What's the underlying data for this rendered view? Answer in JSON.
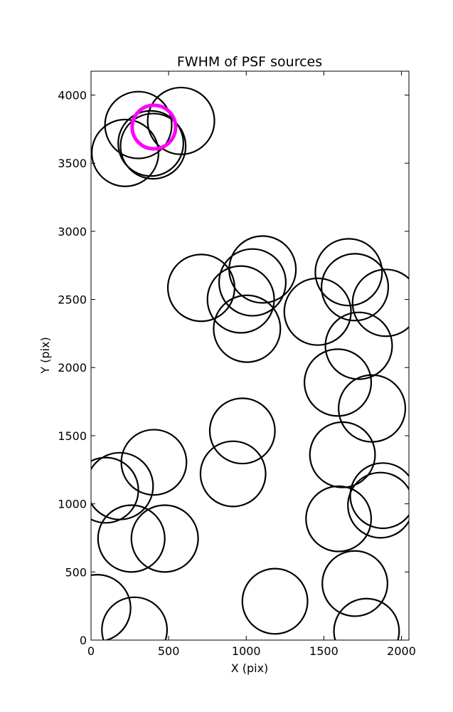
{
  "chart_data": {
    "type": "scatter",
    "title": "FWHM of PSF sources",
    "xlabel": "X (pix)",
    "ylabel": "Y (pix)",
    "xlim": [
      0,
      2048
    ],
    "ylim": [
      0,
      4175
    ],
    "xticks": [
      0,
      500,
      1000,
      1500,
      2000
    ],
    "yticks": [
      0,
      500,
      1000,
      1500,
      2000,
      2500,
      3000,
      3500,
      4000
    ],
    "grid": false,
    "legend": "none",
    "marker": "circle",
    "colors": {
      "normal": "#000000",
      "highlight": "#ff00ff"
    },
    "sources": [
      {
        "x": 305,
        "y": 3780,
        "r": 215
      },
      {
        "x": 580,
        "y": 3810,
        "r": 215
      },
      {
        "x": 220,
        "y": 3575,
        "r": 215
      },
      {
        "x": 385,
        "y": 3645,
        "r": 210
      },
      {
        "x": 400,
        "y": 3625,
        "r": 210
      },
      {
        "x": 710,
        "y": 2585,
        "r": 215
      },
      {
        "x": 1105,
        "y": 2720,
        "r": 215
      },
      {
        "x": 1040,
        "y": 2625,
        "r": 215
      },
      {
        "x": 965,
        "y": 2500,
        "r": 215
      },
      {
        "x": 1005,
        "y": 2285,
        "r": 215
      },
      {
        "x": 1660,
        "y": 2700,
        "r": 215
      },
      {
        "x": 1700,
        "y": 2590,
        "r": 215
      },
      {
        "x": 1900,
        "y": 2475,
        "r": 215
      },
      {
        "x": 1460,
        "y": 2410,
        "r": 215
      },
      {
        "x": 1725,
        "y": 2160,
        "r": 215
      },
      {
        "x": 1590,
        "y": 1890,
        "r": 215
      },
      {
        "x": 1810,
        "y": 1700,
        "r": 215
      },
      {
        "x": 975,
        "y": 1535,
        "r": 210
      },
      {
        "x": 915,
        "y": 1220,
        "r": 210
      },
      {
        "x": 405,
        "y": 1305,
        "r": 210
      },
      {
        "x": 185,
        "y": 1130,
        "r": 215
      },
      {
        "x": 95,
        "y": 1100,
        "r": 210
      },
      {
        "x": 260,
        "y": 745,
        "r": 215
      },
      {
        "x": 475,
        "y": 745,
        "r": 215
      },
      {
        "x": 40,
        "y": 235,
        "r": 215
      },
      {
        "x": 280,
        "y": 75,
        "r": 210
      },
      {
        "x": 1185,
        "y": 285,
        "r": 210
      },
      {
        "x": 1620,
        "y": 1360,
        "r": 210
      },
      {
        "x": 1880,
        "y": 1060,
        "r": 210
      },
      {
        "x": 1865,
        "y": 990,
        "r": 210
      },
      {
        "x": 1595,
        "y": 890,
        "r": 210
      },
      {
        "x": 1700,
        "y": 415,
        "r": 210
      },
      {
        "x": 1775,
        "y": 65,
        "r": 210
      },
      {
        "x": 405,
        "y": 3765,
        "r": 140,
        "highlight": true
      }
    ]
  }
}
